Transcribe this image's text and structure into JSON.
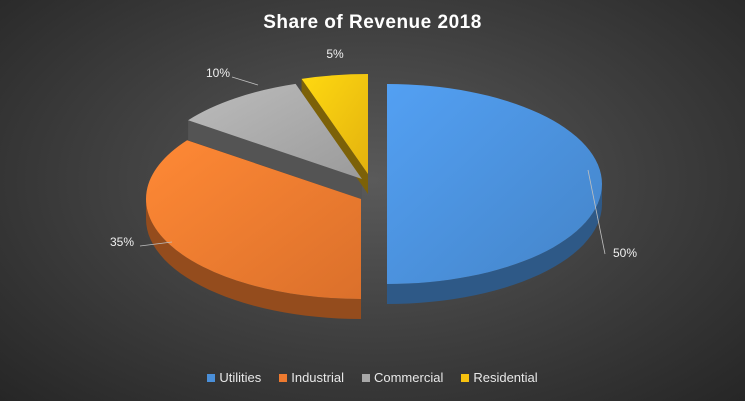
{
  "chart_data": {
    "type": "pie",
    "title": "Share of Revenue 2018",
    "categories": [
      "Utilities",
      "Industrial",
      "Commercial",
      "Residential"
    ],
    "values": [
      50,
      35,
      10,
      5
    ],
    "labels": [
      "50%",
      "35%",
      "10%",
      "5%"
    ],
    "colors": [
      "#4a8fd9",
      "#ee7a2f",
      "#a8a8a8",
      "#f7c20f"
    ],
    "legend_position": "bottom",
    "style": "3d-exploded"
  }
}
